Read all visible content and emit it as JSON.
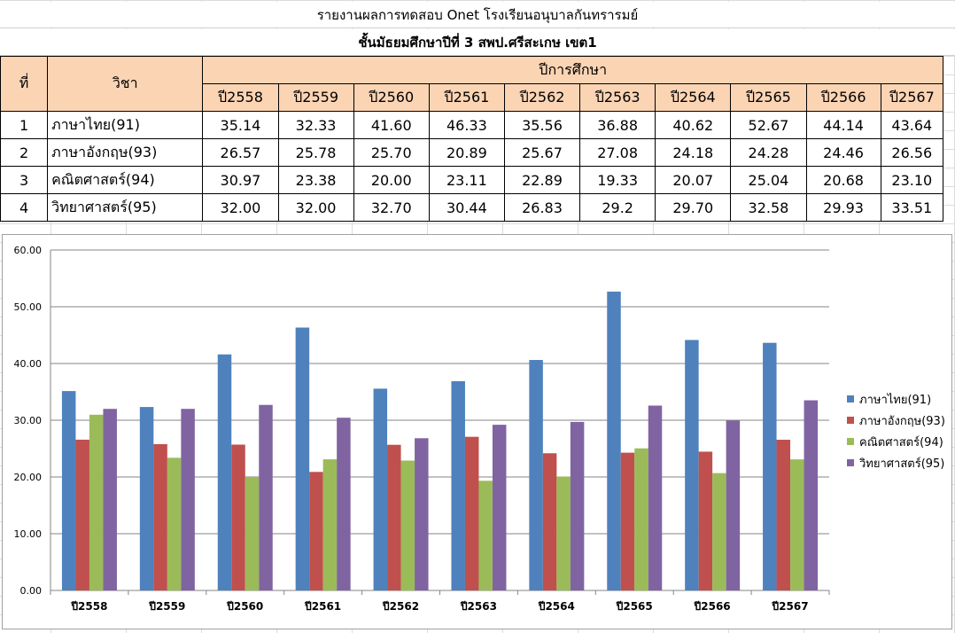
{
  "header": {
    "title": "รายงานผลการทดสอบ Onet  โรงเรียนอนุบาลกันทรารมย์",
    "subtitle": "ชั้นมัธยมศึกษาปีที่ 3  สพป.ศรีสะเกษ เขต1"
  },
  "table": {
    "col_no": "ที่",
    "col_subject": "วิชา",
    "col_years_group": "ปีการศึกษา",
    "years": [
      "ปี2558",
      "ปี2559",
      "ปี2560",
      "ปี2561",
      "ปี2562",
      "ปี2563",
      "ปี2564",
      "ปี2565",
      "ปี2566",
      "ปี2567"
    ],
    "rows": [
      {
        "no": "1",
        "subject": "ภาษาไทย(91)",
        "values": [
          "35.14",
          "32.33",
          "41.60",
          "46.33",
          "35.56",
          "36.88",
          "40.62",
          "52.67",
          "44.14",
          "43.64"
        ]
      },
      {
        "no": "2",
        "subject": "ภาษาอังกฤษ(93)",
        "values": [
          "26.57",
          "25.78",
          "25.70",
          "20.89",
          "25.67",
          "27.08",
          "24.18",
          "24.28",
          "24.46",
          "26.56"
        ]
      },
      {
        "no": "3",
        "subject": "คณิตศาสตร์(94)",
        "values": [
          "30.97",
          "23.38",
          "20.00",
          "23.11",
          "22.89",
          "19.33",
          "20.07",
          "25.04",
          "20.68",
          "23.10"
        ]
      },
      {
        "no": "4",
        "subject": "วิทยาศาสตร์(95)",
        "values": [
          "32.00",
          "32.00",
          "32.70",
          "30.44",
          "26.83",
          "29.2",
          "29.70",
          "32.58",
          "29.93",
          "33.51"
        ]
      }
    ]
  },
  "chart_data": {
    "type": "bar",
    "categories": [
      "ปี2558",
      "ปี2559",
      "ปี2560",
      "ปี2561",
      "ปี2562",
      "ปี2563",
      "ปี2564",
      "ปี2565",
      "ปี2566",
      "ปี2567"
    ],
    "series": [
      {
        "name": "ภาษาไทย(91)",
        "color": "#4f81bd",
        "values": [
          35.14,
          32.33,
          41.6,
          46.33,
          35.56,
          36.88,
          40.62,
          52.67,
          44.14,
          43.64
        ]
      },
      {
        "name": "ภาษาอังกฤษ(93)",
        "color": "#c0504d",
        "values": [
          26.57,
          25.78,
          25.7,
          20.89,
          25.67,
          27.08,
          24.18,
          24.28,
          24.46,
          26.56
        ]
      },
      {
        "name": "คณิตศาสตร์(94)",
        "color": "#9bbb59",
        "values": [
          30.97,
          23.38,
          20.0,
          23.11,
          22.89,
          19.33,
          20.07,
          25.04,
          20.68,
          23.1
        ]
      },
      {
        "name": "วิทยาศาสตร์(95)",
        "color": "#8064a2",
        "values": [
          32.0,
          32.0,
          32.7,
          30.44,
          26.83,
          29.2,
          29.7,
          32.58,
          29.93,
          33.51
        ]
      }
    ],
    "y_ticks": [
      "0.00",
      "10.00",
      "20.00",
      "30.00",
      "40.00",
      "50.00",
      "60.00"
    ],
    "ylim": [
      0,
      60
    ],
    "grid": true,
    "legend": "right"
  }
}
